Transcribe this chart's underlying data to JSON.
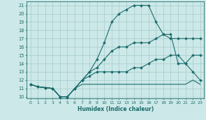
{
  "xlabel": "Humidex (Indice chaleur)",
  "xlim_min": -0.5,
  "xlim_max": 23.5,
  "ylim_min": 9.8,
  "ylim_max": 21.5,
  "xticks": [
    0,
    1,
    2,
    3,
    4,
    5,
    6,
    7,
    8,
    9,
    10,
    11,
    12,
    13,
    14,
    15,
    16,
    17,
    18,
    19,
    20,
    21,
    22,
    23
  ],
  "yticks": [
    10,
    11,
    12,
    13,
    14,
    15,
    16,
    17,
    18,
    19,
    20,
    21
  ],
  "background_color": "#cde8e8",
  "grid_color": "#aacfcf",
  "line_color": "#1a6b6b",
  "lines": [
    {
      "x": [
        0,
        1,
        2,
        3,
        4,
        5,
        6,
        7,
        8,
        9,
        10,
        11,
        12,
        13,
        14,
        15,
        16,
        17,
        18,
        19,
        20,
        21,
        22,
        23
      ],
      "y": [
        11.5,
        11.2,
        11.1,
        11.0,
        10.0,
        10.0,
        11.0,
        11.5,
        11.5,
        11.5,
        11.5,
        11.5,
        11.5,
        11.5,
        11.5,
        11.5,
        11.5,
        11.5,
        11.5,
        11.5,
        11.5,
        11.5,
        12.0,
        11.5
      ],
      "has_markers": false
    },
    {
      "x": [
        0,
        1,
        2,
        3,
        4,
        5,
        6,
        7,
        8,
        9,
        10,
        11,
        12,
        13,
        14,
        15,
        16,
        17,
        18,
        19,
        20,
        21,
        22,
        23
      ],
      "y": [
        11.5,
        11.2,
        11.1,
        11.0,
        10.0,
        10.0,
        11.0,
        12.0,
        12.5,
        13.0,
        13.0,
        13.0,
        13.0,
        13.0,
        13.5,
        13.5,
        14.0,
        14.5,
        14.5,
        15.0,
        15.0,
        14.0,
        13.0,
        12.0
      ],
      "has_markers": true
    },
    {
      "x": [
        0,
        1,
        2,
        3,
        4,
        5,
        6,
        7,
        8,
        9,
        10,
        11,
        12,
        13,
        14,
        15,
        16,
        17,
        18,
        19,
        20,
        21,
        22,
        23
      ],
      "y": [
        11.5,
        11.2,
        11.1,
        11.0,
        10.0,
        10.0,
        11.0,
        12.0,
        13.0,
        13.5,
        14.5,
        15.5,
        16.0,
        16.0,
        16.5,
        16.5,
        16.5,
        17.0,
        17.5,
        17.5,
        14.0,
        14.0,
        15.0,
        15.0
      ],
      "has_markers": true
    },
    {
      "x": [
        0,
        1,
        2,
        3,
        4,
        5,
        6,
        7,
        8,
        9,
        10,
        11,
        12,
        13,
        14,
        15,
        16,
        17,
        18,
        19,
        20,
        21,
        22,
        23
      ],
      "y": [
        11.5,
        11.2,
        11.1,
        11.0,
        10.0,
        10.0,
        11.0,
        12.0,
        13.0,
        14.5,
        16.5,
        19.0,
        20.0,
        20.5,
        21.0,
        21.0,
        21.0,
        19.0,
        17.5,
        17.0,
        17.0,
        17.0,
        17.0,
        17.0
      ],
      "has_markers": true
    }
  ]
}
